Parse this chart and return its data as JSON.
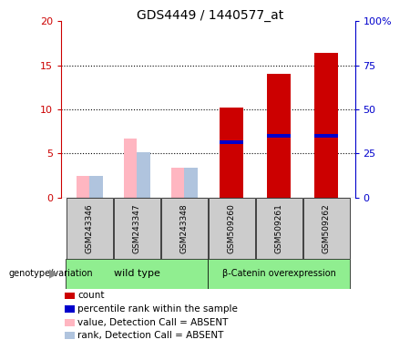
{
  "title": "GDS4449 / 1440577_at",
  "categories": [
    "GSM243346",
    "GSM243347",
    "GSM243348",
    "GSM509260",
    "GSM509261",
    "GSM509262"
  ],
  "count_values": [
    0,
    0,
    0,
    10.2,
    14.0,
    16.4
  ],
  "rank_values": [
    0,
    0,
    0,
    6.3,
    7.0,
    7.0
  ],
  "absent_value": [
    2.5,
    6.7,
    3.4,
    0,
    0,
    0
  ],
  "absent_rank": [
    2.5,
    5.2,
    3.4,
    0,
    0,
    0
  ],
  "is_absent": [
    true,
    true,
    true,
    false,
    false,
    false
  ],
  "ylim_left": [
    0,
    20
  ],
  "ylim_right": [
    0,
    100
  ],
  "yticks_left": [
    0,
    5,
    10,
    15,
    20
  ],
  "yticks_right": [
    0,
    25,
    50,
    75,
    100
  ],
  "yticklabels_left": [
    "0",
    "5",
    "10",
    "15",
    "20"
  ],
  "yticklabels_right": [
    "0",
    "25",
    "50",
    "75",
    "100%"
  ],
  "bar_width": 0.28,
  "count_color": "#CC0000",
  "rank_color": "#0000CC",
  "absent_value_color": "#FFB6C1",
  "absent_rank_color": "#B0C4DE",
  "background_plot": "#FFFFFF",
  "background_label": "#CCCCCC",
  "group_row_color": "#90EE90",
  "left_axis_color": "#CC0000",
  "right_axis_color": "#0000CC",
  "wild_type_label": "wild type",
  "beta_label": "β-Catenin overexpression",
  "genotype_label": "genotype/variation",
  "legend_items": [
    {
      "color": "#CC0000",
      "label": "count"
    },
    {
      "color": "#0000CC",
      "label": "percentile rank within the sample"
    },
    {
      "color": "#FFB6C1",
      "label": "value, Detection Call = ABSENT"
    },
    {
      "color": "#B0C4DE",
      "label": "rank, Detection Call = ABSENT"
    }
  ]
}
